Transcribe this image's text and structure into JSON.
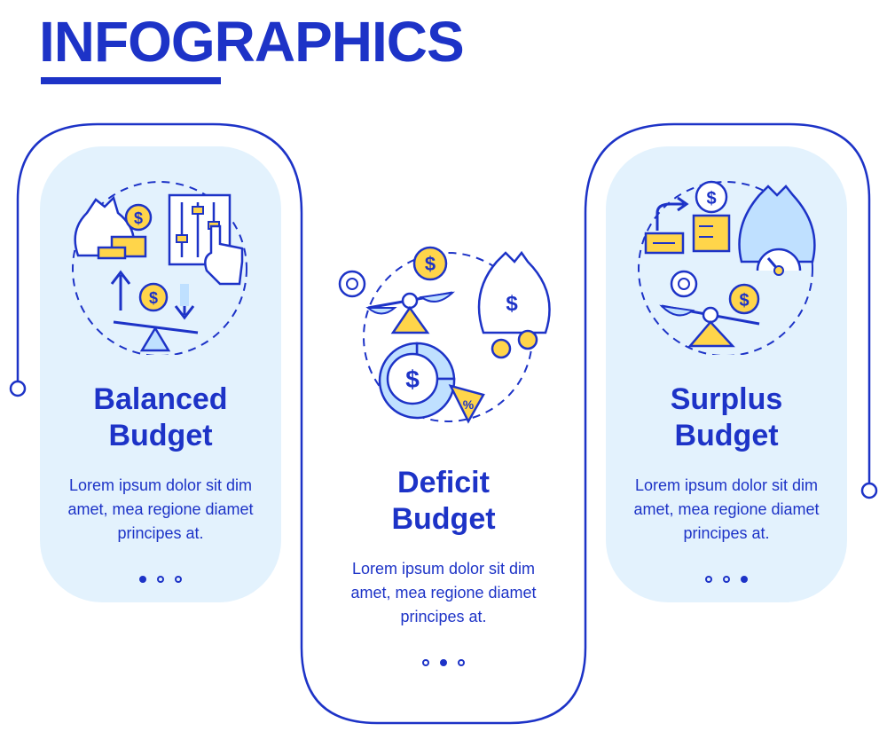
{
  "header": {
    "title": "INFOGRAPHICS"
  },
  "colors": {
    "accent": "#1d33c7",
    "card_fill": "#e3f2fd",
    "icon_yellow": "#ffd54a",
    "icon_blue": "#bfe0ff"
  },
  "cards": [
    {
      "title_line1": "Balanced",
      "title_line2": "Budget",
      "description": "Lorem ipsum dolor sit dim amet, mea regione diamet principes at.",
      "active_dot": 1,
      "icon": "balanced-budget-icon"
    },
    {
      "title_line1": "Deficit",
      "title_line2": "Budget",
      "description": "Lorem ipsum dolor sit dim amet, mea regione diamet principes at.",
      "active_dot": 2,
      "icon": "deficit-budget-icon"
    },
    {
      "title_line1": "Surplus",
      "title_line2": "Budget",
      "description": "Lorem ipsum dolor sit dim amet, mea regione diamet principes at.",
      "active_dot": 3,
      "icon": "surplus-budget-icon"
    }
  ],
  "symbols": {
    "dollar": "$",
    "percent": "%"
  }
}
